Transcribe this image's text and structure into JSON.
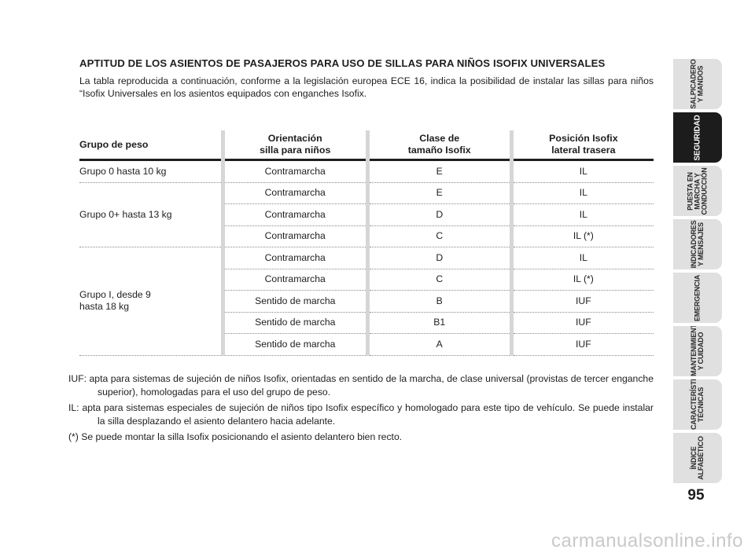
{
  "heading": "APTITUD DE LOS ASIENTOS DE PASAJEROS PARA USO DE SILLAS PARA NIÑOS ISOFIX UNIVERSALES",
  "intro": "La tabla reproducida a continuación, conforme a la legislación europea ECE 16, indica la posibilidad de instalar las sillas para niños “Isofix Universales en los asientos equipados con enganches Isofix.",
  "table": {
    "headers": [
      "Grupo de peso",
      "Orientación\nsilla para niños",
      "Clase de\ntamaño Isofix",
      "Posición Isofix\nlateral trasera"
    ],
    "groups": [
      {
        "label": "Grupo 0 hasta 10 kg",
        "rows": [
          [
            "Contramarcha",
            "E",
            "IL"
          ]
        ]
      },
      {
        "label": "Grupo 0+ hasta 13 kg",
        "rows": [
          [
            "Contramarcha",
            "E",
            "IL"
          ],
          [
            "Contramarcha",
            "D",
            "IL"
          ],
          [
            "Contramarcha",
            "C",
            "IL (*)"
          ]
        ]
      },
      {
        "label": "Grupo I, desde 9\nhasta 18 kg",
        "rows": [
          [
            "Contramarcha",
            "D",
            "IL"
          ],
          [
            "Contramarcha",
            "C",
            "IL (*)"
          ],
          [
            "Sentido de marcha",
            "B",
            "IUF"
          ],
          [
            "Sentido de marcha",
            "B1",
            "IUF"
          ],
          [
            "Sentido de marcha",
            "A",
            "IUF"
          ]
        ]
      }
    ]
  },
  "notes": [
    "IUF: apta para sistemas de sujeción de niños Isofix, orientadas en sentido de la marcha, de clase universal (provistas de tercer enganche superior), homologadas para el uso del grupo de peso.",
    "IL: apta para sistemas especiales de sujeción de niños tipo Isofix específico y homologado para este tipo de vehículo. Se puede instalar la silla desplazando el asiento delantero hacia adelante.",
    "(*) Se puede montar la silla Isofix posicionando el asiento delantero bien recto."
  ],
  "tabs": [
    {
      "label": "SALPICADERO\nY MANDOS",
      "active": false
    },
    {
      "label": "SEGURIDAD",
      "active": true
    },
    {
      "label": "PUESTA EN\nMARCHA Y\nCONDUCCIÓN",
      "active": false
    },
    {
      "label": "INDICADORES\nY MENSAJES",
      "active": false
    },
    {
      "label": "EMERGENCIA",
      "active": false
    },
    {
      "label": "MANTENIMIENTO\nY CUIDADO",
      "active": false
    },
    {
      "label": "CARACTERÍSTICAS\nTÉCNICAS",
      "active": false
    },
    {
      "label": "ÍNDICE\nALFABÉTICO",
      "active": false
    }
  ],
  "page_number": "95",
  "watermark": "carmanualsonline.info"
}
